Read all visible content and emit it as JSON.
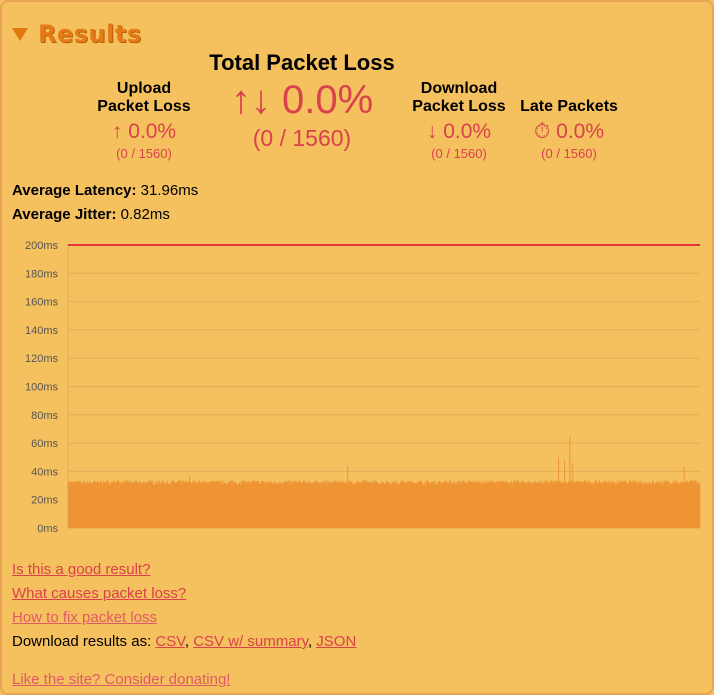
{
  "header": {
    "title": "Results"
  },
  "total": {
    "label": "Total Packet Loss",
    "value": "0.0%",
    "count": "(0 / 1560)"
  },
  "upload": {
    "label_line1": "Upload",
    "label_line2": "Packet Loss",
    "value": "0.0%",
    "count": "(0 / 1560)"
  },
  "download": {
    "label_line1": "Download",
    "label_line2": "Packet Loss",
    "value": "0.0%",
    "count": "(0 / 1560)"
  },
  "late": {
    "label": "Late Packets",
    "value": "0.0%",
    "count": "(0 / 1560)"
  },
  "latency": {
    "label": "Average Latency:",
    "value": "31.96ms"
  },
  "jitter": {
    "label": "Average Jitter:",
    "value": "0.82ms"
  },
  "chart_data": {
    "type": "area",
    "ylabel": "",
    "xlabel": "",
    "ylim": [
      0,
      200
    ],
    "yticks": [
      "0ms",
      "20ms",
      "40ms",
      "60ms",
      "80ms",
      "100ms",
      "120ms",
      "140ms",
      "160ms",
      "180ms",
      "200ms"
    ],
    "threshold": 200,
    "samples": 1560,
    "baseline_ms": 31.96,
    "jitter_ms": 0.82,
    "spikes": [
      {
        "sample": 300,
        "value": 37
      },
      {
        "sample": 690,
        "value": 44
      },
      {
        "sample": 1210,
        "value": 50
      },
      {
        "sample": 1225,
        "value": 48
      },
      {
        "sample": 1238,
        "value": 65
      },
      {
        "sample": 1245,
        "value": 46
      },
      {
        "sample": 1520,
        "value": 43
      }
    ],
    "colors": {
      "fill": "#ef9434",
      "threshold": "#e2343f",
      "grid": "#e4ad5a"
    }
  },
  "links": {
    "good_result": "Is this a good result?",
    "causes": "What causes packet loss?",
    "fix": "How to fix packet loss",
    "download_prefix": "Download results as:",
    "csv": "CSV",
    "csv_summary": "CSV w/ summary",
    "json": "JSON",
    "donate": "Like the site? Consider donating!"
  }
}
